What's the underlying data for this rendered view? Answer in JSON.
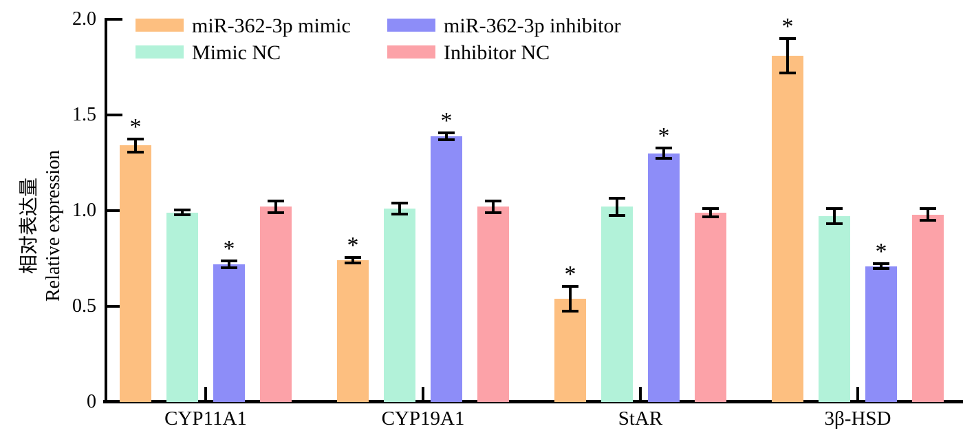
{
  "figure_title": "",
  "y_axis": {
    "label_zh": "相对表达量",
    "label_en": "Relative expression"
  },
  "chart_data": {
    "type": "bar",
    "title": "",
    "xlabel": "",
    "ylabel": "相对表达量 Relative expression",
    "ylim": [
      0,
      2.0
    ],
    "yticks": [
      0,
      0.5,
      1.0,
      1.5,
      2.0
    ],
    "ytick_labels": [
      "0",
      "0.5",
      "1.0",
      "1.5",
      "2.0"
    ],
    "grid": false,
    "legend_position": "top-left",
    "significance_marker": "*",
    "categories": [
      "CYP11A1",
      "CYP19A1",
      "StAR",
      "3β-HSD"
    ],
    "series": [
      {
        "name": "miR-362-3p mimic",
        "color": "#FDBF80",
        "values": [
          1.34,
          0.74,
          0.54,
          1.81
        ],
        "errors": [
          0.035,
          0.015,
          0.065,
          0.09
        ],
        "significant": [
          true,
          true,
          true,
          true
        ]
      },
      {
        "name": "Mimic NC",
        "color": "#B2F2D9",
        "values": [
          0.99,
          1.01,
          1.02,
          0.97
        ],
        "errors": [
          0.012,
          0.028,
          0.045,
          0.04
        ],
        "significant": [
          false,
          false,
          false,
          false
        ]
      },
      {
        "name": "miR-362-3p inhibitor",
        "color": "#8D8DF8",
        "values": [
          0.72,
          1.39,
          1.3,
          0.71
        ],
        "errors": [
          0.018,
          0.018,
          0.028,
          0.012
        ],
        "significant": [
          true,
          true,
          true,
          true
        ]
      },
      {
        "name": "Inhibitor NC",
        "color": "#FCA2A8",
        "values": [
          1.02,
          1.02,
          0.99,
          0.98
        ],
        "errors": [
          0.032,
          0.03,
          0.022,
          0.03
        ],
        "significant": [
          false,
          false,
          false,
          false
        ]
      }
    ]
  }
}
